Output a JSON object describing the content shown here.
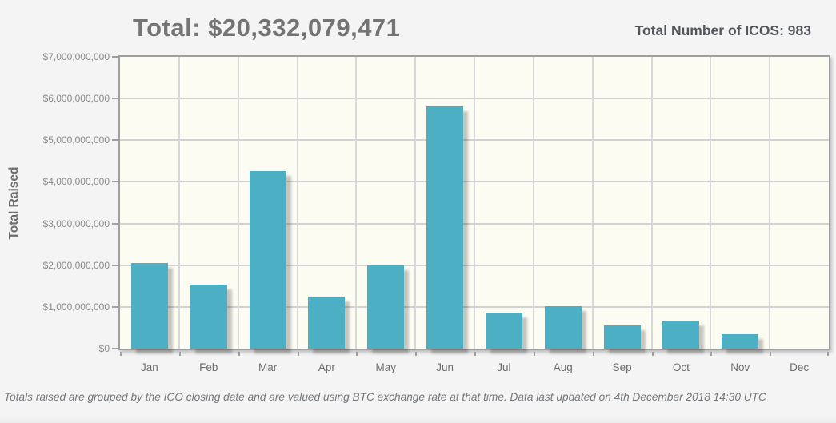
{
  "header": {
    "title": "Total: $20,332,079,471",
    "total_icos": "Total Number of ICOS: 983"
  },
  "chart_data": {
    "type": "bar",
    "title": "Total: $20,332,079,471",
    "subtitle": "Total Number of ICOS: 983",
    "categories": [
      "Jan",
      "Feb",
      "Mar",
      "Apr",
      "May",
      "Jun",
      "Jul",
      "Aug",
      "Sep",
      "Oct",
      "Nov",
      "Dec"
    ],
    "values": [
      2060000000,
      1530000000,
      4260000000,
      1250000000,
      2000000000,
      5820000000,
      870000000,
      1010000000,
      550000000,
      680000000,
      350000000,
      0
    ],
    "xlabel": "",
    "ylabel": "Total Raised",
    "ylim": [
      0,
      7000000000
    ],
    "grid": true,
    "legend_position": "none",
    "y_ticks": [
      {
        "value": 0,
        "label": "$0"
      },
      {
        "value": 1000000000,
        "label": "$1,000,000,000"
      },
      {
        "value": 2000000000,
        "label": "$2,000,000,000"
      },
      {
        "value": 3000000000,
        "label": "$3,000,000,000"
      },
      {
        "value": 4000000000,
        "label": "$4,000,000,000"
      },
      {
        "value": 5000000000,
        "label": "$5,000,000,000"
      },
      {
        "value": 6000000000,
        "label": "$6,000,000,000"
      },
      {
        "value": 7000000000,
        "label": "$7,000,000,000"
      }
    ]
  },
  "footer": {
    "note": "Totals raised are grouped by the ICO closing date and are valued using BTC exchange rate at that time. Data last updated on 4th December 2018 14:30 UTC"
  },
  "colors": {
    "bar": "#4dafc4",
    "plot_background": "#fdfcf2",
    "page_background": "#f4f4f4",
    "grid": "#d2d2d2",
    "axis_border": "#9f9f9f",
    "title_text": "#747474",
    "icos_text": "#54585d",
    "tick_text": "#8a8a8a",
    "month_text": "#6e6e6e",
    "footer_text": "#73787d"
  }
}
